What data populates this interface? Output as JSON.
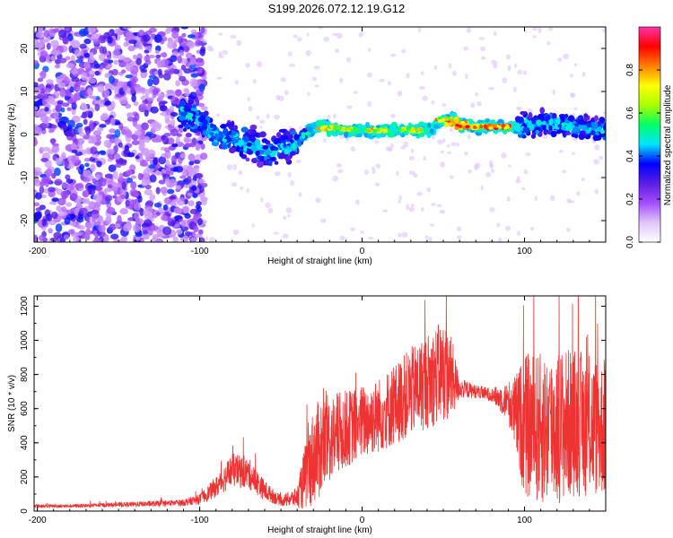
{
  "title": "S199.2026.072.12.19.G12",
  "chart_data": [
    {
      "type": "heatmap",
      "xlabel": "Height of straight line (km)",
      "ylabel": "Frequency (Hz)",
      "xlim": [
        -202,
        150
      ],
      "ylim": [
        -25,
        25
      ],
      "x_ticks": [
        -200,
        -100,
        0,
        100
      ],
      "y_ticks": [
        -20,
        -10,
        0,
        10,
        20
      ],
      "colorbar": {
        "label": "Normalized spectral amplitude",
        "range": [
          0,
          1
        ],
        "ticks": [
          "0.0",
          "0.2",
          "0.4",
          "0.6",
          "0.8"
        ],
        "tick_values": [
          0,
          0.2,
          0.4,
          0.6,
          0.8
        ],
        "colors": [
          "#ffffff",
          "#e0c6f8",
          "#a64dff",
          "#5a1ee0",
          "#0000ff",
          "#00e5ff",
          "#00ff66",
          "#aaff00",
          "#ffff00",
          "#ff8000",
          "#ff0000",
          "#ff33aa"
        ]
      },
      "ridge": [
        {
          "x": -110,
          "y": 5
        },
        {
          "x": -100,
          "y": 3
        },
        {
          "x": -90,
          "y": 0
        },
        {
          "x": -80,
          "y": -1
        },
        {
          "x": -70,
          "y": -2
        },
        {
          "x": -60,
          "y": -4
        },
        {
          "x": -50,
          "y": -3
        },
        {
          "x": -40,
          "y": -2
        },
        {
          "x": -33,
          "y": 1
        },
        {
          "x": -25,
          "y": 2
        },
        {
          "x": -15,
          "y": 1
        },
        {
          "x": 0,
          "y": 1
        },
        {
          "x": 20,
          "y": 1
        },
        {
          "x": 40,
          "y": 1
        },
        {
          "x": 50,
          "y": 3
        },
        {
          "x": 55,
          "y": 4
        },
        {
          "x": 60,
          "y": 2.5
        },
        {
          "x": 70,
          "y": 1.8
        },
        {
          "x": 90,
          "y": 1.8
        },
        {
          "x": 100,
          "y": 2
        },
        {
          "x": 120,
          "y": 2.5
        },
        {
          "x": 140,
          "y": 1.5
        },
        {
          "x": 150,
          "y": 1
        }
      ],
      "core": [
        {
          "x": -20,
          "y": 1.5,
          "amp": 0.8
        },
        {
          "x": -10,
          "y": 1.2,
          "amp": 0.8
        },
        {
          "x": 10,
          "y": 1.0,
          "amp": 0.85
        },
        {
          "x": 30,
          "y": 1.0,
          "amp": 0.8
        },
        {
          "x": 52,
          "y": 3.5,
          "amp": 0.85
        },
        {
          "x": 58,
          "y": 2.5,
          "amp": 0.9
        },
        {
          "x": 65,
          "y": 1.8,
          "amp": 0.95
        },
        {
          "x": 75,
          "y": 1.8,
          "amp": 0.95
        },
        {
          "x": 85,
          "y": 1.8,
          "amp": 0.95
        }
      ]
    },
    {
      "type": "line",
      "xlabel": "Height of straight line (km)",
      "ylabel": "SNR (10 * v/v)",
      "xlim": [
        -202,
        150
      ],
      "ylim": [
        0,
        1260
      ],
      "x_ticks": [
        -200,
        -100,
        0,
        100
      ],
      "y_ticks": [
        0,
        200,
        400,
        600,
        800,
        1000,
        1200
      ],
      "color": "#ee3333",
      "series": [
        {
          "x": [
            -202,
            -180,
            -160,
            -140,
            -120,
            -110,
            -100,
            -90,
            -80,
            -70,
            -60,
            -50,
            -40,
            -35,
            -30,
            -25,
            -20,
            -15,
            -10,
            -5,
            0,
            10,
            20,
            30,
            40,
            50,
            55,
            60,
            70,
            80,
            90,
            95,
            100,
            110,
            120,
            130,
            140,
            150
          ],
          "y": [
            30,
            30,
            35,
            40,
            45,
            50,
            70,
            140,
            240,
            220,
            120,
            60,
            80,
            200,
            320,
            380,
            420,
            450,
            480,
            500,
            520,
            560,
            620,
            700,
            760,
            820,
            780,
            720,
            700,
            680,
            640,
            560,
            500,
            480,
            500,
            520,
            500,
            480
          ],
          "noise": [
            10,
            10,
            12,
            15,
            18,
            20,
            30,
            60,
            100,
            90,
            60,
            30,
            60,
            200,
            280,
            300,
            260,
            250,
            230,
            220,
            220,
            220,
            240,
            260,
            280,
            300,
            250,
            60,
            40,
            40,
            120,
            250,
            420,
            450,
            460,
            440,
            420,
            400
          ]
        }
      ]
    }
  ]
}
